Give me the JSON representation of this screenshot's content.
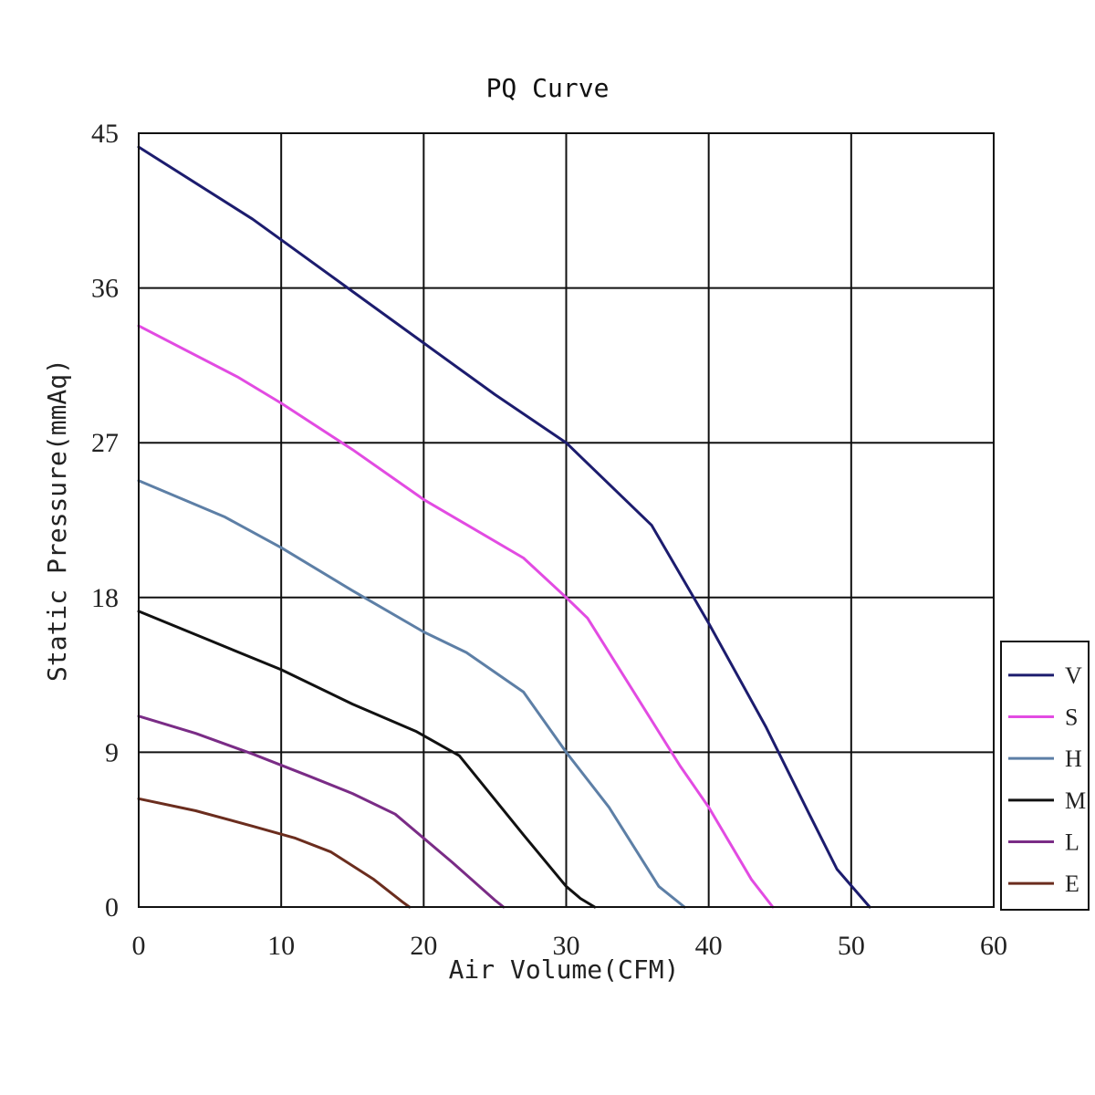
{
  "chart_data": {
    "type": "line",
    "title": "PQ Curve",
    "xlabel": "Air Volume(CFM)",
    "ylabel": "Static Pressure(mmAq)",
    "xlim": [
      0,
      60
    ],
    "ylim": [
      0,
      45
    ],
    "xticks": [
      0,
      10,
      20,
      30,
      40,
      50,
      60
    ],
    "yticks": [
      0,
      9,
      18,
      27,
      36,
      45
    ],
    "grid": true,
    "legend_position": "right",
    "series": [
      {
        "name": "V",
        "color": "#1c1c6e",
        "x": [
          0,
          8,
          10,
          15,
          20,
          25,
          30,
          31,
          36,
          40,
          44,
          47,
          49,
          51.3
        ],
        "y": [
          44.2,
          40,
          38.8,
          35.8,
          32.8,
          29.8,
          27,
          26.2,
          22.2,
          16.5,
          10.5,
          5.5,
          2.2,
          0
        ]
      },
      {
        "name": "S",
        "color": "#e24be2",
        "x": [
          0,
          7,
          10,
          15,
          20,
          27,
          30,
          31.5,
          38,
          40,
          43,
          44.5
        ],
        "y": [
          33.8,
          30.8,
          29.3,
          26.6,
          23.7,
          20.3,
          18,
          16.8,
          8.2,
          5.8,
          1.6,
          0
        ]
      },
      {
        "name": "H",
        "color": "#5d7fa6",
        "x": [
          0,
          6,
          10,
          15,
          20,
          23,
          27,
          30,
          33,
          36.5,
          38.3
        ],
        "y": [
          24.8,
          22.7,
          20.9,
          18.4,
          16,
          14.8,
          12.5,
          9,
          5.8,
          1.2,
          0
        ]
      },
      {
        "name": "M",
        "color": "#111111",
        "x": [
          0,
          5,
          10,
          15,
          19.5,
          22.5,
          27,
          30,
          31,
          32
        ],
        "y": [
          17.2,
          15.5,
          13.8,
          11.8,
          10.2,
          8.8,
          4.2,
          1.2,
          0.5,
          0
        ]
      },
      {
        "name": "L",
        "color": "#7a2c86",
        "x": [
          0,
          4,
          8,
          12,
          15,
          18,
          22,
          25,
          25.6
        ],
        "y": [
          11.1,
          10.1,
          8.9,
          7.6,
          6.6,
          5.4,
          2.6,
          0.4,
          0
        ]
      },
      {
        "name": "E",
        "color": "#6b2d1e",
        "x": [
          0,
          4,
          8,
          11,
          13.5,
          16.5,
          18.5,
          19
        ],
        "y": [
          6.3,
          5.6,
          4.7,
          4,
          3.2,
          1.6,
          0.3,
          0
        ]
      }
    ]
  }
}
